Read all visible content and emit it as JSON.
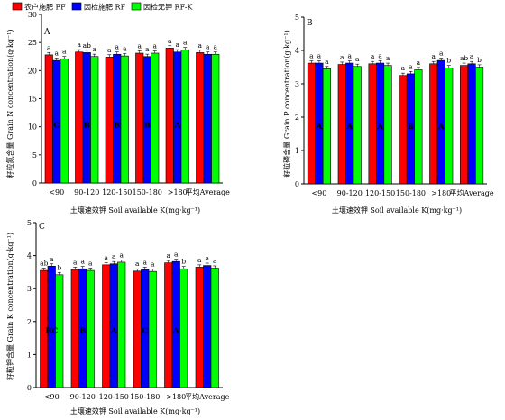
{
  "legend": [
    {
      "label": "农户施肥 FF",
      "color": "#ff0000"
    },
    {
      "label": "因检施肥 RF",
      "color": "#0000ff"
    },
    {
      "label": "因检无钾 RF-K",
      "color": "#00ff00"
    }
  ],
  "chart_data": [
    {
      "type": "bar",
      "panel": "A",
      "ylabel": "籽粒氮含量 Grain N concentration(g·kg⁻¹)",
      "xlabel": "土壤速效钾 Soil available K(mg·kg⁻¹)",
      "ylim": [
        0,
        30
      ],
      "yticks": [
        0,
        5,
        10,
        15,
        20,
        25,
        30
      ],
      "categories": [
        "<90",
        "90-120",
        "120-150",
        "150-180",
        ">180",
        "平均Average"
      ],
      "series": [
        {
          "name": "农户施肥 FF",
          "values": [
            22.8,
            23.3,
            22.4,
            23.1,
            24.0,
            23.2
          ],
          "letters": [
            "a",
            "a",
            "a",
            "a",
            "a",
            "a"
          ]
        },
        {
          "name": "因检施肥 RF",
          "values": [
            21.8,
            23.2,
            22.9,
            22.5,
            23.3,
            22.9
          ],
          "letters": [
            "a",
            "ab",
            "a",
            "a",
            "a",
            "a"
          ]
        },
        {
          "name": "因检无钾 RF-K",
          "values": [
            22.1,
            22.5,
            22.6,
            23.1,
            23.7,
            22.9
          ],
          "letters": [
            "a",
            "a",
            "a",
            "a",
            "a",
            "a"
          ]
        }
      ],
      "group_letters": [
        "C",
        "B",
        "B",
        "B",
        "A",
        ""
      ]
    },
    {
      "type": "bar",
      "panel": "B",
      "ylabel": "籽粒磷含量 Grain P concentration(g·kg⁻¹)",
      "xlabel": "土壤速效钾 Soil available K(mg·kg⁻¹)",
      "ylim": [
        0,
        5
      ],
      "yticks": [
        0,
        1,
        2,
        3,
        4,
        5
      ],
      "categories": [
        "<90",
        "90-120",
        "120-150",
        "150-180",
        ">180",
        "平均Average"
      ],
      "series": [
        {
          "name": "农户施肥 FF",
          "values": [
            3.62,
            3.58,
            3.6,
            3.25,
            3.6,
            3.55
          ],
          "letters": [
            "a",
            "a",
            "a",
            "a",
            "a",
            "ab"
          ]
        },
        {
          "name": "因检施肥 RF",
          "values": [
            3.62,
            3.62,
            3.62,
            3.3,
            3.7,
            3.6
          ],
          "letters": [
            "a",
            "a",
            "a",
            "a",
            "a",
            "a"
          ]
        },
        {
          "name": "因检无钾 RF-K",
          "values": [
            3.45,
            3.52,
            3.55,
            3.42,
            3.48,
            3.5
          ],
          "letters": [
            "a",
            "a",
            "a",
            "a",
            "b",
            "b"
          ]
        }
      ],
      "group_letters": [
        "A",
        "A",
        "A",
        "B",
        "A",
        ""
      ]
    },
    {
      "type": "bar",
      "panel": "C",
      "ylabel": "籽粒钾含量 Grain K concentration(g·kg⁻¹)",
      "xlabel": "土壤速效钾 Soil available K(mg·kg⁻¹)",
      "ylim": [
        0,
        5
      ],
      "yticks": [
        0,
        1,
        2,
        3,
        4,
        5
      ],
      "categories": [
        "<90",
        "90-120",
        "120-150",
        "150-180",
        ">180",
        "平均Average"
      ],
      "series": [
        {
          "name": "农户施肥 FF",
          "values": [
            3.55,
            3.58,
            3.72,
            3.53,
            3.78,
            3.65
          ],
          "letters": [
            "ab",
            "a",
            "a",
            "a",
            "a",
            "a"
          ]
        },
        {
          "name": "因检施肥 RF",
          "values": [
            3.68,
            3.6,
            3.75,
            3.58,
            3.82,
            3.7
          ],
          "letters": [
            "a",
            "a",
            "a",
            "a",
            "a",
            "a"
          ]
        },
        {
          "name": "因检无钾 RF-K",
          "values": [
            3.42,
            3.55,
            3.8,
            3.52,
            3.6,
            3.62
          ],
          "letters": [
            "b",
            "a",
            "a",
            "a",
            "b",
            "a"
          ]
        }
      ],
      "group_letters": [
        "BC",
        "B",
        "A",
        "C",
        "A",
        ""
      ]
    }
  ]
}
